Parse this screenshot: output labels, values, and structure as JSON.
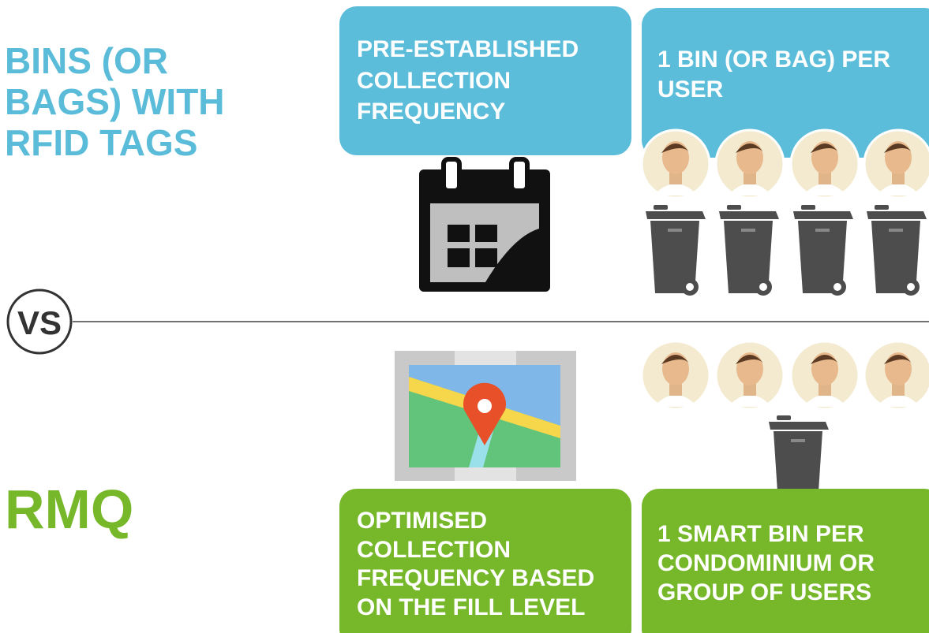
{
  "top": {
    "title": [
      "BINS (OR",
      "BAGS) WITH",
      "RFID TAGS"
    ],
    "box1": [
      "PRE-ESTABLISHED",
      "COLLECTION",
      "FREQUENCY"
    ],
    "box2": [
      "1 BIN (OR BAG) PER",
      "USER"
    ]
  },
  "vs": "VS",
  "bottom": {
    "title": "RMQ",
    "box1": [
      "OPTIMISED",
      "COLLECTION",
      "FREQUENCY BASED",
      "ON THE FILL LEVEL"
    ],
    "box2": [
      "1 SMART BIN PER",
      "CONDOMINIUM OR",
      "GROUP OF USERS"
    ]
  }
}
